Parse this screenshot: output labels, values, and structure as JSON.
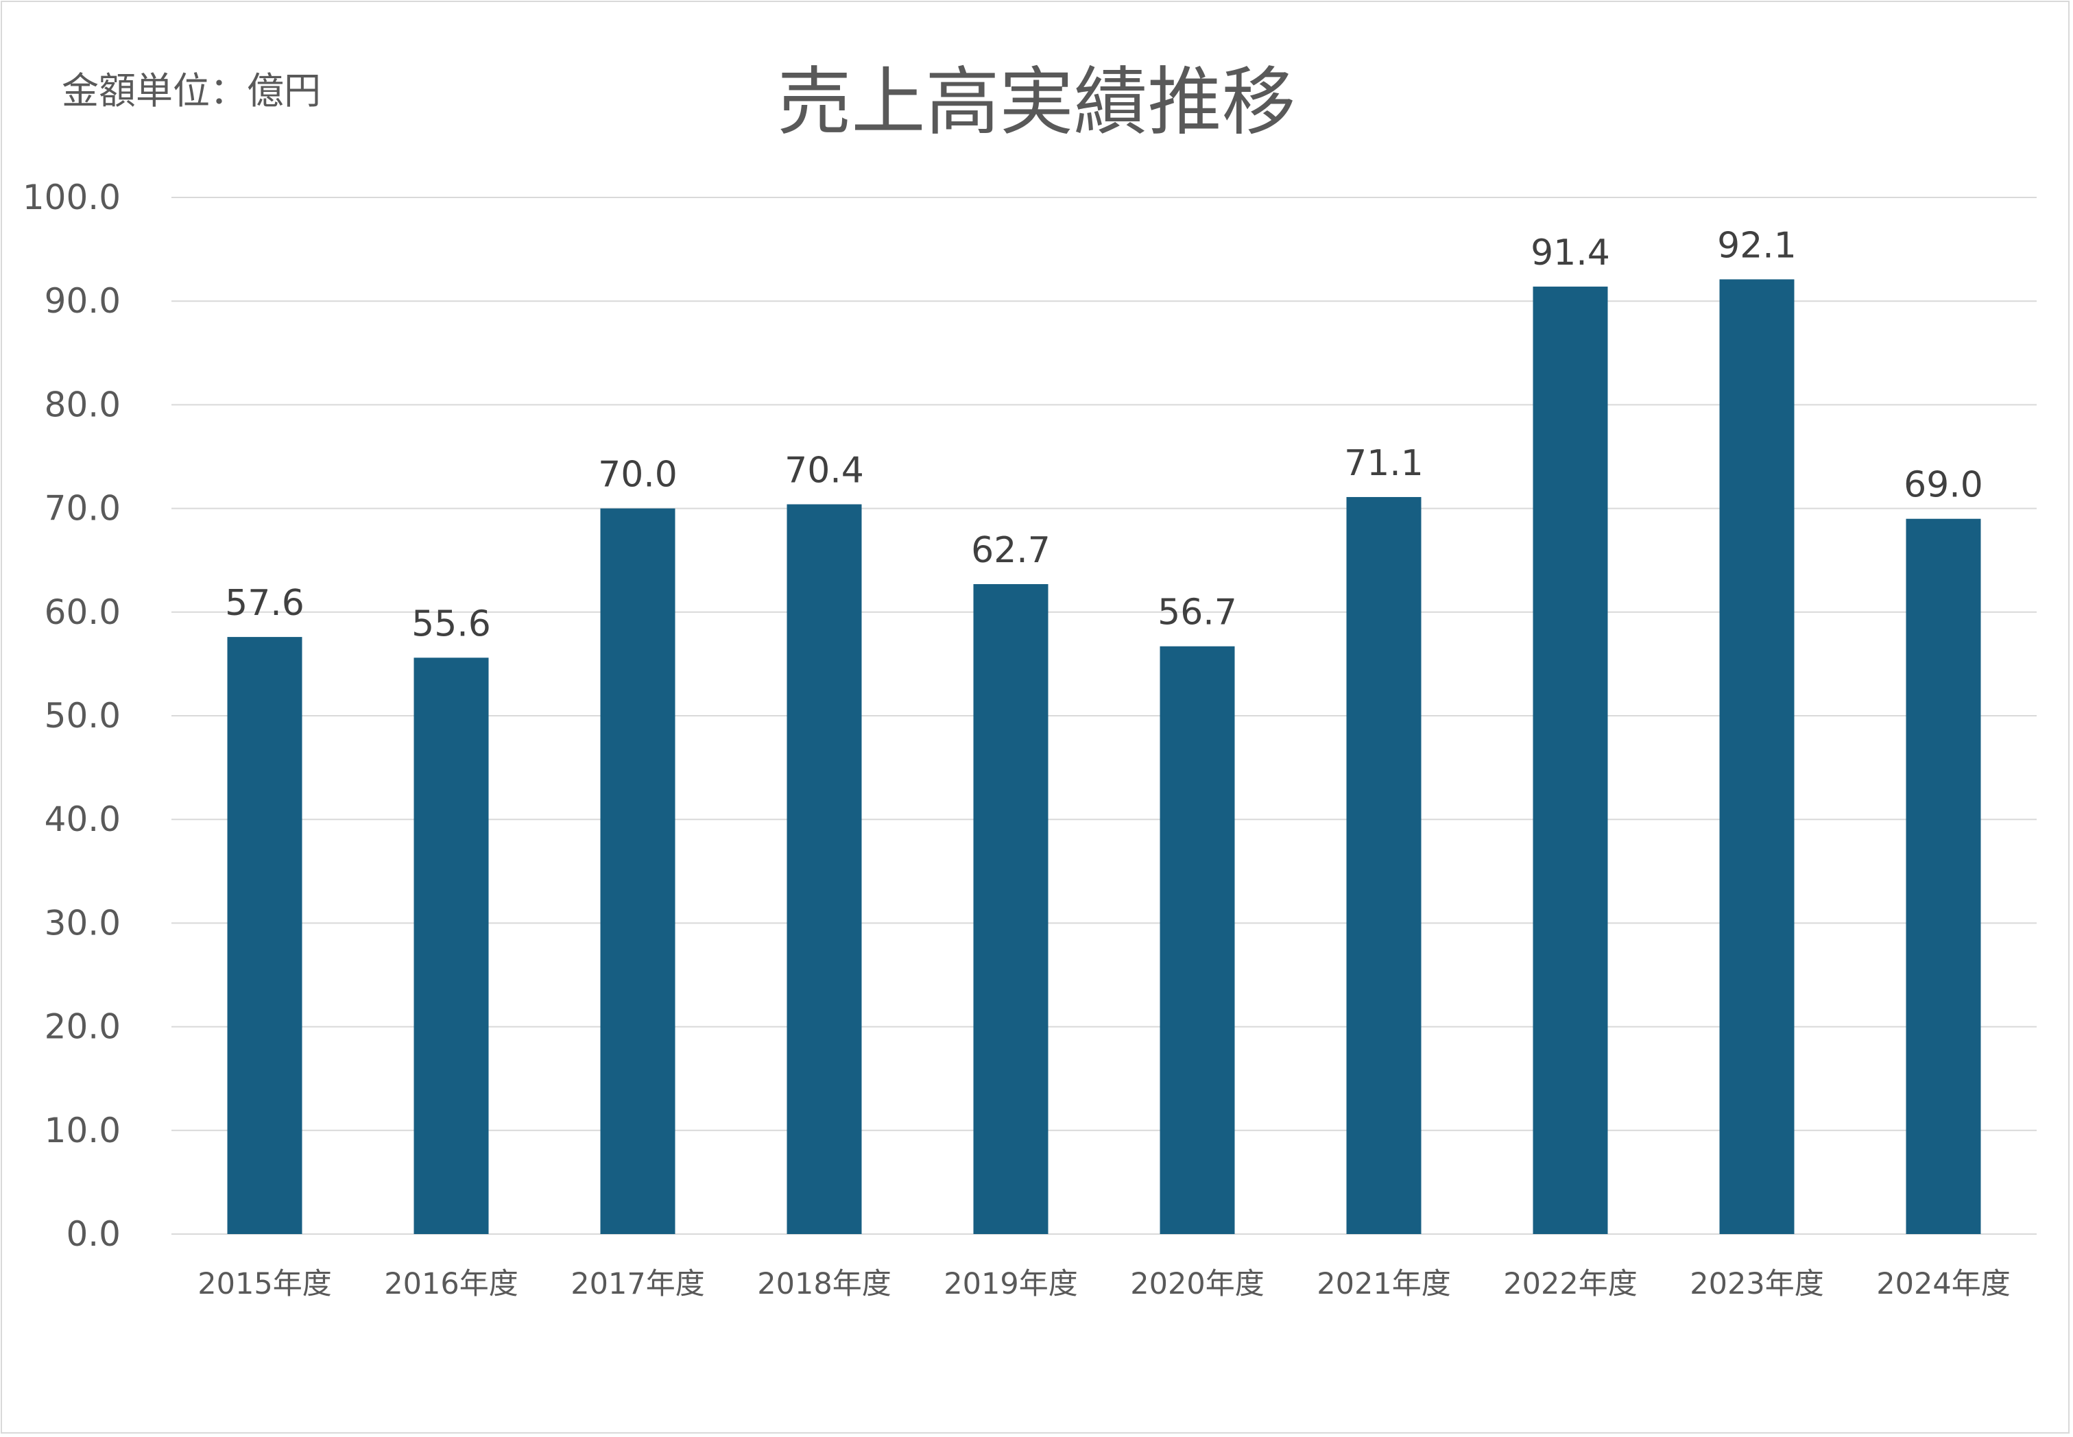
{
  "unit_label": "金額単位：億円",
  "chart_data": {
    "type": "bar",
    "title": "売上高実績推移",
    "xlabel": "",
    "ylabel": "",
    "categories": [
      "2015年度",
      "2016年度",
      "2017年度",
      "2018年度",
      "2019年度",
      "2020年度",
      "2021年度",
      "2022年度",
      "2023年度",
      "2024年度"
    ],
    "values": [
      57.6,
      55.6,
      70.0,
      70.4,
      62.7,
      56.7,
      71.1,
      91.4,
      92.1,
      69.0
    ],
    "value_labels": [
      "57.6",
      "55.6",
      "70.0",
      "70.4",
      "62.7",
      "56.7",
      "71.1",
      "91.4",
      "92.1",
      "69.0"
    ],
    "ylim": [
      0,
      100
    ],
    "yticks": [
      "0.0",
      "10.0",
      "20.0",
      "30.0",
      "40.0",
      "50.0",
      "60.0",
      "70.0",
      "80.0",
      "90.0",
      "100.0"
    ],
    "grid": true,
    "legend": "none",
    "colors": {
      "bar": "#175e82",
      "grid": "#d9d9d9",
      "text": "#595959",
      "data_label": "#404040"
    }
  }
}
